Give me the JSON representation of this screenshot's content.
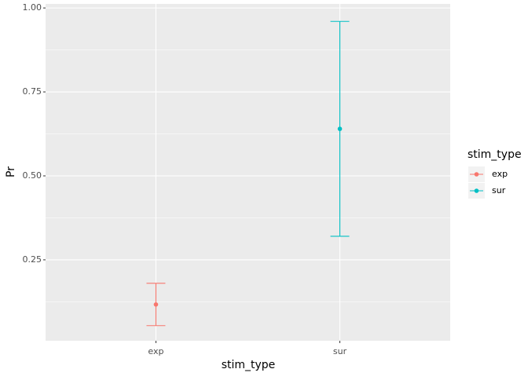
{
  "chart_data": {
    "type": "errorbar",
    "x_label": "stim_type",
    "y_label": "Pr",
    "legend_title": "stim_type",
    "categories": [
      "exp",
      "sur"
    ],
    "colors": [
      "#F8766D",
      "#00BFC4"
    ],
    "values": [
      0.117,
      0.64
    ],
    "lower": [
      0.054,
      0.32
    ],
    "upper": [
      0.18,
      0.96
    ],
    "ylim": [
      0.009,
      1.012
    ],
    "yticks": [
      0.25,
      {
        "value": 0.5,
        "label": "0.50"
      },
      0.75,
      {
        "value": 1,
        "label": "1.00"
      }
    ],
    "grid": true
  }
}
